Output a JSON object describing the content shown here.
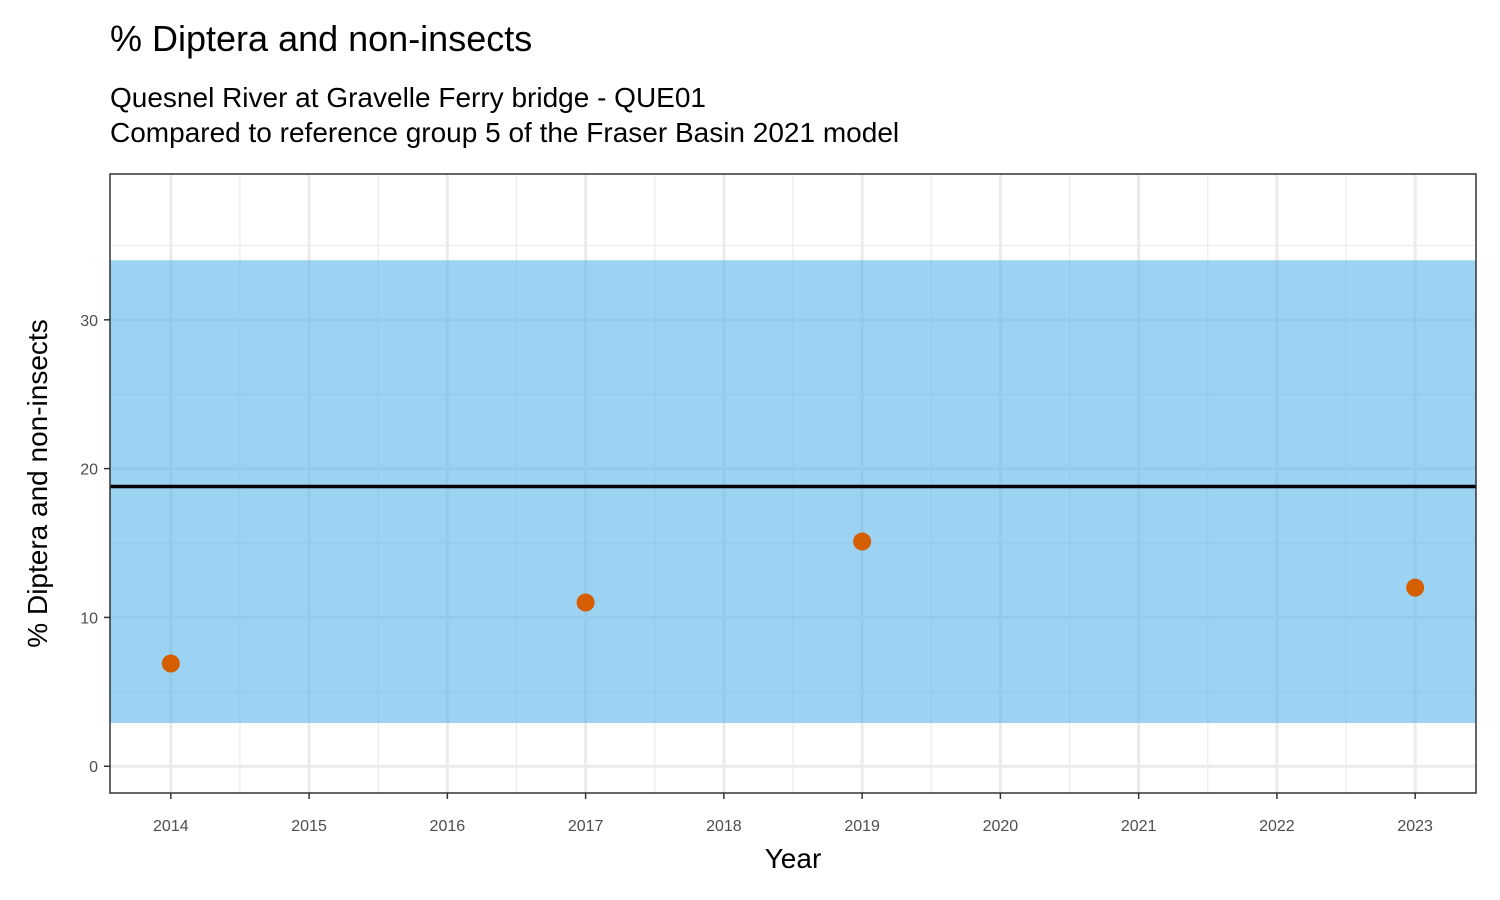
{
  "chart_data": {
    "type": "scatter",
    "title": "% Diptera and non-insects",
    "subtitle_lines": [
      "Quesnel River at Gravelle Ferry bridge - QUE01",
      "Compared to reference group 5 of the Fraser Basin 2021 model"
    ],
    "xlabel": "Year",
    "ylabel": "% Diptera and non-insects",
    "x_ticks": [
      "2014",
      "2015",
      "2016",
      "2017",
      "2018",
      "2019",
      "2020",
      "2021",
      "2022",
      "2023"
    ],
    "y_ticks": [
      "0",
      "10",
      "20",
      "30"
    ],
    "xlim": [
      2013.56,
      2023.44
    ],
    "ylim": [
      -1.8,
      39.8
    ],
    "grid": true,
    "reference_band": {
      "lower": 2.9,
      "upper": 34.0,
      "color": "#56B4E9"
    },
    "reference_line": {
      "value": 18.8,
      "color": "#000000"
    },
    "point_color": "#D55E00",
    "points": [
      {
        "x": 2014,
        "y": 6.9
      },
      {
        "x": 2017,
        "y": 11.0
      },
      {
        "x": 2019,
        "y": 15.1
      },
      {
        "x": 2023,
        "y": 12.0
      }
    ]
  }
}
